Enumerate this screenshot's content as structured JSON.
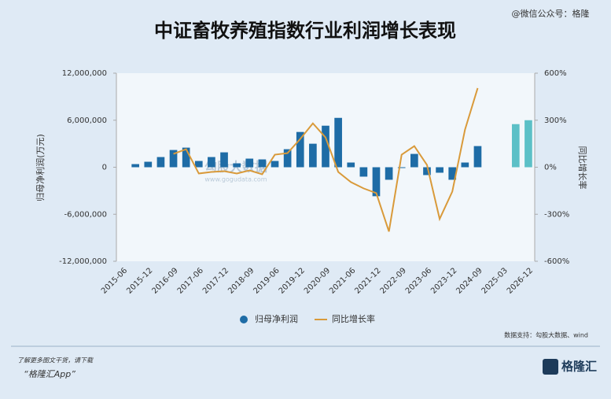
{
  "chart_data": {
    "type": "bar_line",
    "title": "中证畜牧养殖指数行业利润增长表现",
    "ylabel": "归母净利润(万元)",
    "y2label": "同比增长率",
    "categories": [
      "2015-06",
      null,
      "2015-12",
      null,
      "2016-09",
      null,
      "2017-06",
      null,
      "2017-12",
      null,
      "2018-09",
      null,
      "2019-06",
      null,
      "2019-12",
      null,
      "2020-09",
      null,
      "2021-06",
      null,
      "2021-12",
      null,
      "2022-09",
      null,
      "2023-06",
      null,
      "2023-12",
      null,
      "2024-09",
      null,
      "2025-03",
      null,
      "2026-12"
    ],
    "series": [
      {
        "name": "归母净利润",
        "color": "#1e6ca6",
        "bar_colors": [
          "#1e6ca6",
          "#1e6ca6",
          "#1e6ca6",
          "#1e6ca6",
          "#1e6ca6",
          "#1e6ca6",
          "#1e6ca6",
          "#1e6ca6",
          "#1e6ca6",
          "#1e6ca6",
          "#1e6ca6",
          "#1e6ca6",
          "#1e6ca6",
          "#1e6ca6",
          "#1e6ca6",
          "#1e6ca6",
          "#1e6ca6",
          "#1e6ca6",
          "#1e6ca6",
          "#1e6ca6",
          "#1e6ca6",
          "#1e6ca6",
          "#1e6ca6",
          "#1e6ca6",
          "#1e6ca6",
          "#1e6ca6",
          "#1e6ca6",
          "#1e6ca6",
          "#1e6ca6",
          "#1e6ca6",
          "#1e6ca6",
          "#5cc0c7",
          "#5cc0c7"
        ],
        "values": [
          null,
          400000,
          700000,
          1300000,
          2200000,
          2500000,
          800000,
          1300000,
          1900000,
          500000,
          1100000,
          1000000,
          800000,
          2300000,
          4500000,
          3000000,
          5300000,
          6300000,
          600000,
          -1200000,
          -3700000,
          -1600000,
          -100000,
          1700000,
          -1000000,
          -700000,
          -1600000,
          600000,
          2700000,
          null,
          null,
          5500000,
          6000000
        ]
      },
      {
        "name": "同比增长率",
        "color": "#d99a3a",
        "axis": "y2",
        "values": [
          null,
          null,
          null,
          null,
          85,
          115,
          -40,
          -30,
          -25,
          -40,
          -20,
          -45,
          80,
          90,
          180,
          280,
          190,
          -30,
          -95,
          -135,
          -165,
          -410,
          80,
          135,
          15,
          -330,
          -155,
          240,
          505,
          null,
          null,
          null,
          null
        ]
      }
    ],
    "ylim": [
      -12000000,
      12000000
    ],
    "yticks": [
      {
        "value": -12000000,
        "label": "-12,000,000"
      },
      {
        "value": -6000000,
        "label": "-6,000,000"
      },
      0,
      {
        "value": 6000000,
        "label": "6,000,000"
      },
      {
        "value": 12000000,
        "label": "12,000,000"
      }
    ],
    "y2lim": [
      -600,
      600
    ],
    "y2ticks": [
      {
        "value": -600,
        "label": "-600%"
      },
      {
        "value": -300,
        "label": "-300%"
      },
      {
        "value": 0,
        "label": "0%"
      },
      {
        "value": 300,
        "label": "300%"
      },
      {
        "value": 600,
        "label": "600%"
      }
    ],
    "source": "数据支持：勾股大数据、wind"
  },
  "page": {
    "account": "@微信公众号：格隆",
    "watermark": "勾股大数据",
    "watermark_url": "www.gogudata.com",
    "footer_note": "了解更多图文干货，请下载",
    "footer_app": "“格隆汇App”",
    "logo": "格隆汇"
  }
}
